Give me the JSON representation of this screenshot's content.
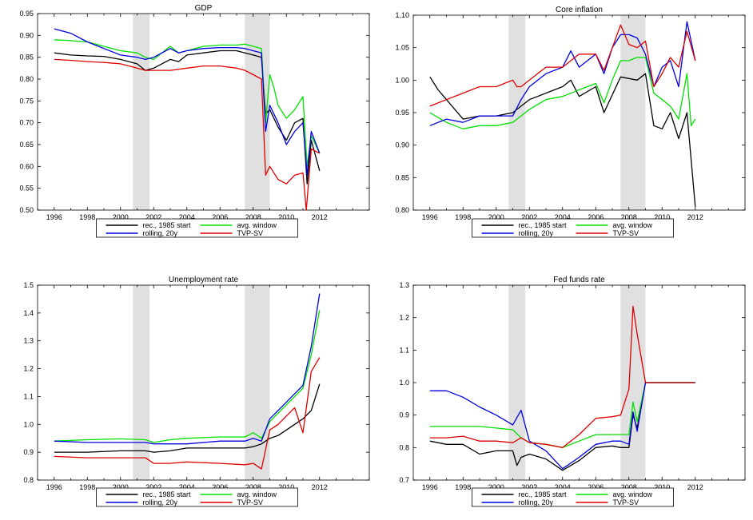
{
  "figure": {
    "legend_entries": [
      "rec., 1985 start",
      "avg. window",
      "rolling, 20y",
      "TVP-SV"
    ],
    "colors": {
      "recession": "#e0e0e0",
      "axis": "#000000"
    }
  },
  "chart_data": [
    {
      "type": "line",
      "title": "GDP",
      "xlim": [
        1995,
        2015
      ],
      "ylim": [
        0.5,
        0.95
      ],
      "yticks": [
        0.5,
        0.55,
        0.6,
        0.65,
        0.7,
        0.75,
        0.8,
        0.85,
        0.9,
        0.95
      ],
      "ytick_labels": [
        "0.50",
        "0.55",
        "0.60",
        "0.65",
        "0.70",
        "0.75",
        "0.80",
        "0.85",
        "0.90",
        "0.95"
      ],
      "xticks": [
        1996,
        1998,
        2000,
        2002,
        2004,
        2006,
        2008,
        2010,
        2012
      ],
      "xtick_labels": [
        "1996",
        "1998",
        "2000",
        "2002",
        "2004",
        "2006",
        "2008",
        "2010",
        "2012"
      ],
      "recessions": [
        [
          2000.75,
          2001.75
        ],
        [
          2007.5,
          2009.0
        ]
      ],
      "legend_position": "bottom",
      "series": [
        {
          "name": "rec., 1985 start",
          "color": "#000000",
          "x": [
            1996,
            1997,
            1998,
            1999,
            2000,
            2001,
            2001.5,
            2002,
            2003,
            2003.5,
            2004,
            2005,
            2006,
            2007,
            2007.5,
            2008,
            2008.5,
            2008.75,
            2009,
            2009.5,
            2010,
            2010.5,
            2011,
            2011.25,
            2011.5,
            2012
          ],
          "y": [
            0.86,
            0.855,
            0.853,
            0.852,
            0.845,
            0.835,
            0.82,
            0.825,
            0.845,
            0.84,
            0.855,
            0.86,
            0.865,
            0.865,
            0.86,
            0.855,
            0.85,
            0.72,
            0.73,
            0.69,
            0.66,
            0.7,
            0.71,
            0.56,
            0.66,
            0.59
          ]
        },
        {
          "name": "avg. window",
          "color": "#00e000",
          "x": [
            1996,
            1997,
            1998,
            1999,
            2000,
            2001,
            2001.5,
            2002,
            2003,
            2003.5,
            2004,
            2005,
            2006,
            2007,
            2007.5,
            2008,
            2008.5,
            2008.75,
            2009,
            2009.25,
            2009.5,
            2010,
            2010.5,
            2011,
            2011.25,
            2011.5,
            2012
          ],
          "y": [
            0.89,
            0.888,
            0.885,
            0.875,
            0.865,
            0.86,
            0.85,
            0.845,
            0.875,
            0.86,
            0.865,
            0.875,
            0.878,
            0.878,
            0.88,
            0.875,
            0.87,
            0.7,
            0.81,
            0.78,
            0.74,
            0.71,
            0.73,
            0.76,
            0.6,
            0.67,
            0.63
          ]
        },
        {
          "name": "rolling, 20y",
          "color": "#0000e0",
          "x": [
            1996,
            1997,
            1998,
            1999,
            2000,
            2001,
            2001.5,
            2002,
            2003,
            2003.5,
            2004,
            2005,
            2006,
            2007,
            2007.5,
            2008,
            2008.5,
            2008.75,
            2009,
            2009.5,
            2010,
            2010.5,
            2011,
            2011.25,
            2011.5,
            2012
          ],
          "y": [
            0.915,
            0.905,
            0.885,
            0.87,
            0.855,
            0.85,
            0.845,
            0.85,
            0.87,
            0.86,
            0.865,
            0.87,
            0.872,
            0.872,
            0.87,
            0.865,
            0.86,
            0.68,
            0.74,
            0.7,
            0.65,
            0.68,
            0.7,
            0.58,
            0.68,
            0.63
          ]
        },
        {
          "name": "TVP-SV",
          "color": "#e00000",
          "x": [
            1996,
            1997,
            1998,
            1999,
            2000,
            2001,
            2001.5,
            2002,
            2003,
            2004,
            2005,
            2006,
            2007,
            2007.5,
            2008,
            2008.5,
            2008.75,
            2009,
            2009.5,
            2010,
            2010.5,
            2011,
            2011.2,
            2011.5,
            2012
          ],
          "y": [
            0.845,
            0.843,
            0.84,
            0.838,
            0.835,
            0.825,
            0.82,
            0.82,
            0.82,
            0.825,
            0.83,
            0.83,
            0.825,
            0.82,
            0.81,
            0.8,
            0.58,
            0.6,
            0.57,
            0.56,
            0.58,
            0.585,
            0.5,
            0.64,
            0.63
          ]
        }
      ]
    },
    {
      "type": "line",
      "title": "Core inflation",
      "xlim": [
        1995,
        2015
      ],
      "ylim": [
        0.8,
        1.1
      ],
      "yticks": [
        0.8,
        0.85,
        0.9,
        0.95,
        1.0,
        1.05,
        1.1
      ],
      "ytick_labels": [
        "0.80",
        "0.85",
        "0.90",
        "0.95",
        "1.00",
        "1.05",
        "1.10"
      ],
      "xticks": [
        1996,
        1998,
        2000,
        2002,
        2004,
        2006,
        2008,
        2010,
        2012
      ],
      "xtick_labels": [
        "1996",
        "1998",
        "2000",
        "2002",
        "2004",
        "2006",
        "2008",
        "2010",
        "2012"
      ],
      "recessions": [
        [
          2000.75,
          2001.75
        ],
        [
          2007.5,
          2009.0
        ]
      ],
      "legend_position": "bottom",
      "series": [
        {
          "name": "rec., 1985 start",
          "color": "#000000",
          "x": [
            1996,
            1996.5,
            1997,
            1998,
            1999,
            2000,
            2001,
            2002,
            2003,
            2004,
            2004.5,
            2005,
            2006,
            2006.5,
            2007.5,
            2008.5,
            2009,
            2009.5,
            2010,
            2010.5,
            2011,
            2011.5,
            2012
          ],
          "y": [
            1.005,
            0.985,
            0.97,
            0.94,
            0.945,
            0.945,
            0.95,
            0.97,
            0.98,
            0.99,
            1.0,
            0.975,
            0.99,
            0.95,
            1.005,
            1.0,
            1.01,
            0.93,
            0.925,
            0.95,
            0.91,
            0.95,
            0.805
          ]
        },
        {
          "name": "avg. window",
          "color": "#00e000",
          "x": [
            1996,
            1997,
            1998,
            1999,
            2000,
            2001,
            2001.5,
            2002,
            2003,
            2004,
            2005,
            2006,
            2006.5,
            2007,
            2007.5,
            2008,
            2008.5,
            2009,
            2009.5,
            2010,
            2010.5,
            2011,
            2011.5,
            2011.75,
            2012
          ],
          "y": [
            0.95,
            0.935,
            0.925,
            0.93,
            0.93,
            0.935,
            0.945,
            0.955,
            0.97,
            0.975,
            0.985,
            0.995,
            0.965,
            1.0,
            1.03,
            1.03,
            1.035,
            1.035,
            0.98,
            0.97,
            0.96,
            0.94,
            1.01,
            0.93,
            0.94
          ]
        },
        {
          "name": "rolling, 20y",
          "color": "#0000e0",
          "x": [
            1996,
            1997,
            1998,
            1999,
            2000,
            2001,
            2001.5,
            2002,
            2003,
            2004,
            2004.5,
            2005,
            2006,
            2006.5,
            2007,
            2007.5,
            2008,
            2008.5,
            2009,
            2009.5,
            2010,
            2010.5,
            2011,
            2011.5,
            2012
          ],
          "y": [
            0.93,
            0.94,
            0.935,
            0.945,
            0.945,
            0.945,
            0.97,
            0.99,
            1.01,
            1.02,
            1.045,
            1.02,
            1.04,
            1.01,
            1.05,
            1.07,
            1.07,
            1.065,
            1.04,
            0.99,
            1.02,
            1.03,
            0.99,
            1.09,
            1.03
          ]
        },
        {
          "name": "TVP-SV",
          "color": "#e00000",
          "x": [
            1996,
            1997,
            1998,
            1999,
            2000,
            2001,
            2001.25,
            2001.5,
            2002,
            2003,
            2004,
            2005,
            2006,
            2006.5,
            2007,
            2007.5,
            2008,
            2008.5,
            2009,
            2009.5,
            2010,
            2010.5,
            2011,
            2011.5,
            2012
          ],
          "y": [
            0.96,
            0.97,
            0.98,
            0.99,
            0.99,
            1.0,
            0.99,
            0.99,
            1.0,
            1.02,
            1.02,
            1.04,
            1.04,
            1.015,
            1.05,
            1.085,
            1.055,
            1.05,
            1.06,
            0.99,
            1.01,
            1.035,
            1.02,
            1.075,
            1.03
          ]
        }
      ]
    },
    {
      "type": "line",
      "title": "Unemployment rate",
      "xlim": [
        1995,
        2015
      ],
      "ylim": [
        0.8,
        1.5
      ],
      "yticks": [
        0.8,
        0.9,
        1.0,
        1.1,
        1.2,
        1.3,
        1.4,
        1.5
      ],
      "ytick_labels": [
        "0.8",
        "0.9",
        "1.0",
        "1.1",
        "1.2",
        "1.3",
        "1.4",
        "1.5"
      ],
      "xticks": [
        1996,
        1998,
        2000,
        2002,
        2004,
        2006,
        2008,
        2010,
        2012
      ],
      "xtick_labels": [
        "1996",
        "1998",
        "2000",
        "2002",
        "2004",
        "2006",
        "2008",
        "2010",
        "2012"
      ],
      "recessions": [
        [
          2000.75,
          2001.75
        ],
        [
          2007.5,
          2009.0
        ]
      ],
      "legend_position": "bottom",
      "series": [
        {
          "name": "rec., 1985 start",
          "color": "#000000",
          "x": [
            1996,
            1998,
            2000,
            2001.5,
            2002,
            2003,
            2004,
            2006,
            2007.5,
            2008,
            2008.5,
            2009,
            2009.5,
            2010,
            2010.5,
            2011,
            2011.5,
            2012
          ],
          "y": [
            0.9,
            0.9,
            0.905,
            0.905,
            0.9,
            0.905,
            0.915,
            0.915,
            0.915,
            0.92,
            0.93,
            0.95,
            0.96,
            0.98,
            1.0,
            1.02,
            1.05,
            1.145
          ]
        },
        {
          "name": "avg. window",
          "color": "#00e000",
          "x": [
            1996,
            1998,
            2000,
            2001.5,
            2002,
            2003,
            2004,
            2006,
            2007.5,
            2008,
            2008.5,
            2009,
            2009.5,
            2010,
            2010.5,
            2011,
            2011.5,
            2012
          ],
          "y": [
            0.94,
            0.945,
            0.948,
            0.945,
            0.935,
            0.945,
            0.95,
            0.955,
            0.955,
            0.97,
            0.95,
            1.01,
            1.04,
            1.07,
            1.1,
            1.13,
            1.25,
            1.41
          ]
        },
        {
          "name": "rolling, 20y",
          "color": "#0000e0",
          "x": [
            1996,
            1998,
            2000,
            2001.5,
            2002,
            2003,
            2004,
            2006,
            2007.5,
            2008,
            2008.5,
            2009,
            2009.5,
            2010,
            2010.5,
            2011,
            2011.5,
            2012
          ],
          "y": [
            0.94,
            0.935,
            0.935,
            0.935,
            0.93,
            0.93,
            0.93,
            0.94,
            0.94,
            0.95,
            0.94,
            1.02,
            1.05,
            1.08,
            1.11,
            1.14,
            1.28,
            1.47
          ]
        },
        {
          "name": "TVP-SV",
          "color": "#e00000",
          "x": [
            1996,
            1998,
            2000,
            2001.5,
            2002,
            2003,
            2004,
            2006,
            2007.5,
            2008,
            2008.5,
            2009,
            2009.5,
            2010,
            2010.5,
            2011,
            2011.5,
            2012
          ],
          "y": [
            0.885,
            0.88,
            0.88,
            0.88,
            0.86,
            0.86,
            0.865,
            0.86,
            0.855,
            0.86,
            0.84,
            0.98,
            1.0,
            1.03,
            1.06,
            0.97,
            1.19,
            1.24
          ]
        }
      ]
    },
    {
      "type": "line",
      "title": "Fed funds rate",
      "xlim": [
        1995,
        2015
      ],
      "ylim": [
        0.7,
        1.3
      ],
      "yticks": [
        0.7,
        0.8,
        0.9,
        1.0,
        1.1,
        1.2,
        1.3
      ],
      "ytick_labels": [
        "0.7",
        "0.8",
        "0.9",
        "1.0",
        "1.1",
        "1.2",
        "1.3"
      ],
      "xticks": [
        1996,
        1998,
        2000,
        2002,
        2004,
        2006,
        2008,
        2010,
        2012
      ],
      "xtick_labels": [
        "1996",
        "1998",
        "2000",
        "2002",
        "2004",
        "2006",
        "2008",
        "2010",
        "2012"
      ],
      "recessions": [
        [
          2000.75,
          2001.75
        ],
        [
          2007.5,
          2009.0
        ]
      ],
      "legend_position": "bottom",
      "series": [
        {
          "name": "rec., 1985 start",
          "color": "#000000",
          "x": [
            1996,
            1997,
            1998,
            1999,
            2000,
            2001,
            2001.25,
            2001.5,
            2002,
            2003,
            2004,
            2005,
            2006,
            2007,
            2007.5,
            2008,
            2008.25,
            2008.5,
            2009,
            2010,
            2011,
            2012
          ],
          "y": [
            0.82,
            0.81,
            0.81,
            0.78,
            0.79,
            0.79,
            0.745,
            0.77,
            0.78,
            0.765,
            0.73,
            0.76,
            0.8,
            0.805,
            0.8,
            0.8,
            0.9,
            0.86,
            1.0,
            1.0,
            1.0,
            1.0
          ]
        },
        {
          "name": "avg. window",
          "color": "#00e000",
          "x": [
            1996,
            1997,
            1998,
            1999,
            2000,
            2001,
            2001.5,
            2002,
            2003,
            2004,
            2005,
            2006,
            2007,
            2007.5,
            2008,
            2008.25,
            2008.5,
            2009,
            2010,
            2011,
            2012
          ],
          "y": [
            0.865,
            0.865,
            0.865,
            0.865,
            0.86,
            0.855,
            0.83,
            0.815,
            0.81,
            0.8,
            0.82,
            0.84,
            0.84,
            0.84,
            0.84,
            0.94,
            0.88,
            1.0,
            1.0,
            1.0,
            1.0
          ]
        },
        {
          "name": "rolling, 20y",
          "color": "#0000e0",
          "x": [
            1996,
            1997,
            1998,
            1999,
            2000,
            2001,
            2001.5,
            2002,
            2003,
            2004,
            2005,
            2006,
            2007,
            2007.5,
            2008,
            2008.25,
            2008.5,
            2009,
            2010,
            2011,
            2012
          ],
          "y": [
            0.975,
            0.975,
            0.955,
            0.925,
            0.9,
            0.87,
            0.915,
            0.82,
            0.79,
            0.735,
            0.77,
            0.81,
            0.82,
            0.82,
            0.81,
            0.91,
            0.85,
            1.0,
            1.0,
            1.0,
            1.0
          ]
        },
        {
          "name": "TVP-SV",
          "color": "#e00000",
          "x": [
            1996,
            1997,
            1998,
            1999,
            2000,
            2001,
            2001.5,
            2002,
            2003,
            2004,
            2005,
            2006,
            2007,
            2007.5,
            2008,
            2008.25,
            2008.5,
            2009,
            2010,
            2011,
            2012
          ],
          "y": [
            0.83,
            0.83,
            0.835,
            0.82,
            0.82,
            0.815,
            0.83,
            0.815,
            0.81,
            0.8,
            0.84,
            0.89,
            0.895,
            0.9,
            0.98,
            1.235,
            1.15,
            1.0,
            1.0,
            1.0,
            1.0
          ]
        }
      ]
    }
  ]
}
